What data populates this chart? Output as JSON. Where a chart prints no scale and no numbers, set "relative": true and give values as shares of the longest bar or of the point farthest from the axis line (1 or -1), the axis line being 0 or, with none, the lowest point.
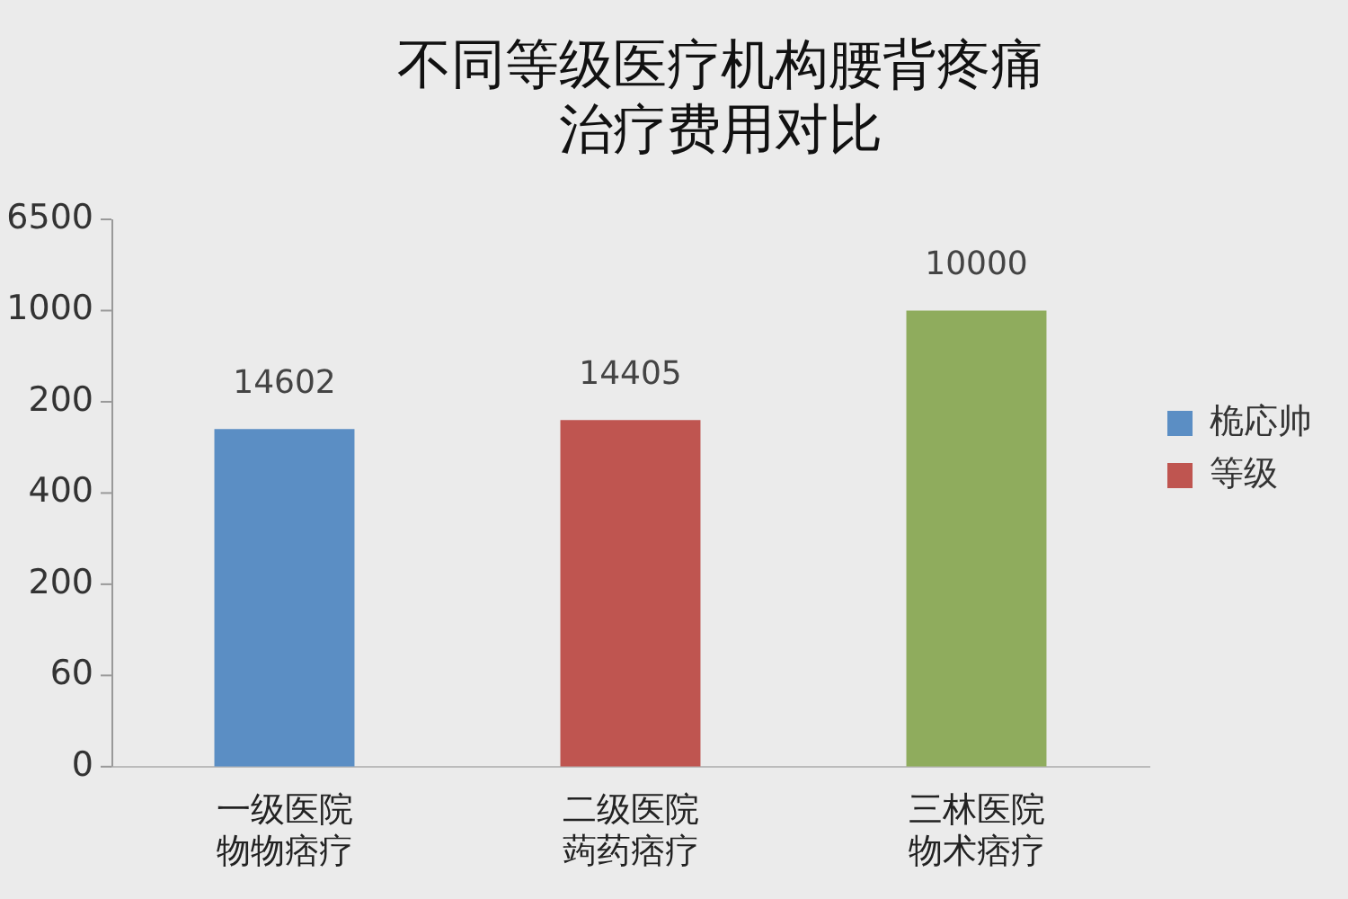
{
  "chart_data": {
    "type": "bar",
    "title": "不同等级医疗机构腰背疼痛治疗费用对比",
    "categories": [
      "一级医院物物痞疗",
      "二级医院蒟药痞疗",
      "三林医院物术痞疗"
    ],
    "series": [
      {
        "name": "桅応帅",
        "color": "#5b8ec4",
        "values": [
          0.74,
          null,
          null
        ]
      },
      {
        "name": "等级",
        "color": "#bf5550",
        "values": [
          null,
          0.76,
          null
        ]
      },
      {
        "color": "#8fac5d",
        "values": [
          null,
          null,
          1
        ]
      }
    ],
    "relative": true,
    "annotations": [
      "0",
      "60",
      "200",
      "400",
      "200",
      "1000",
      "6500",
      {
        "text": "14602",
        "x": "一级医院物物痞疗",
        "y": 0.74
      },
      {
        "text": "14405",
        "x": "二级医院蒟药痞疗",
        "y": 0.76
      },
      {
        "text": "10000",
        "x": "三林医院物术痞疗",
        "y": 1
      }
    ],
    "grid": false,
    "legend": "right"
  }
}
